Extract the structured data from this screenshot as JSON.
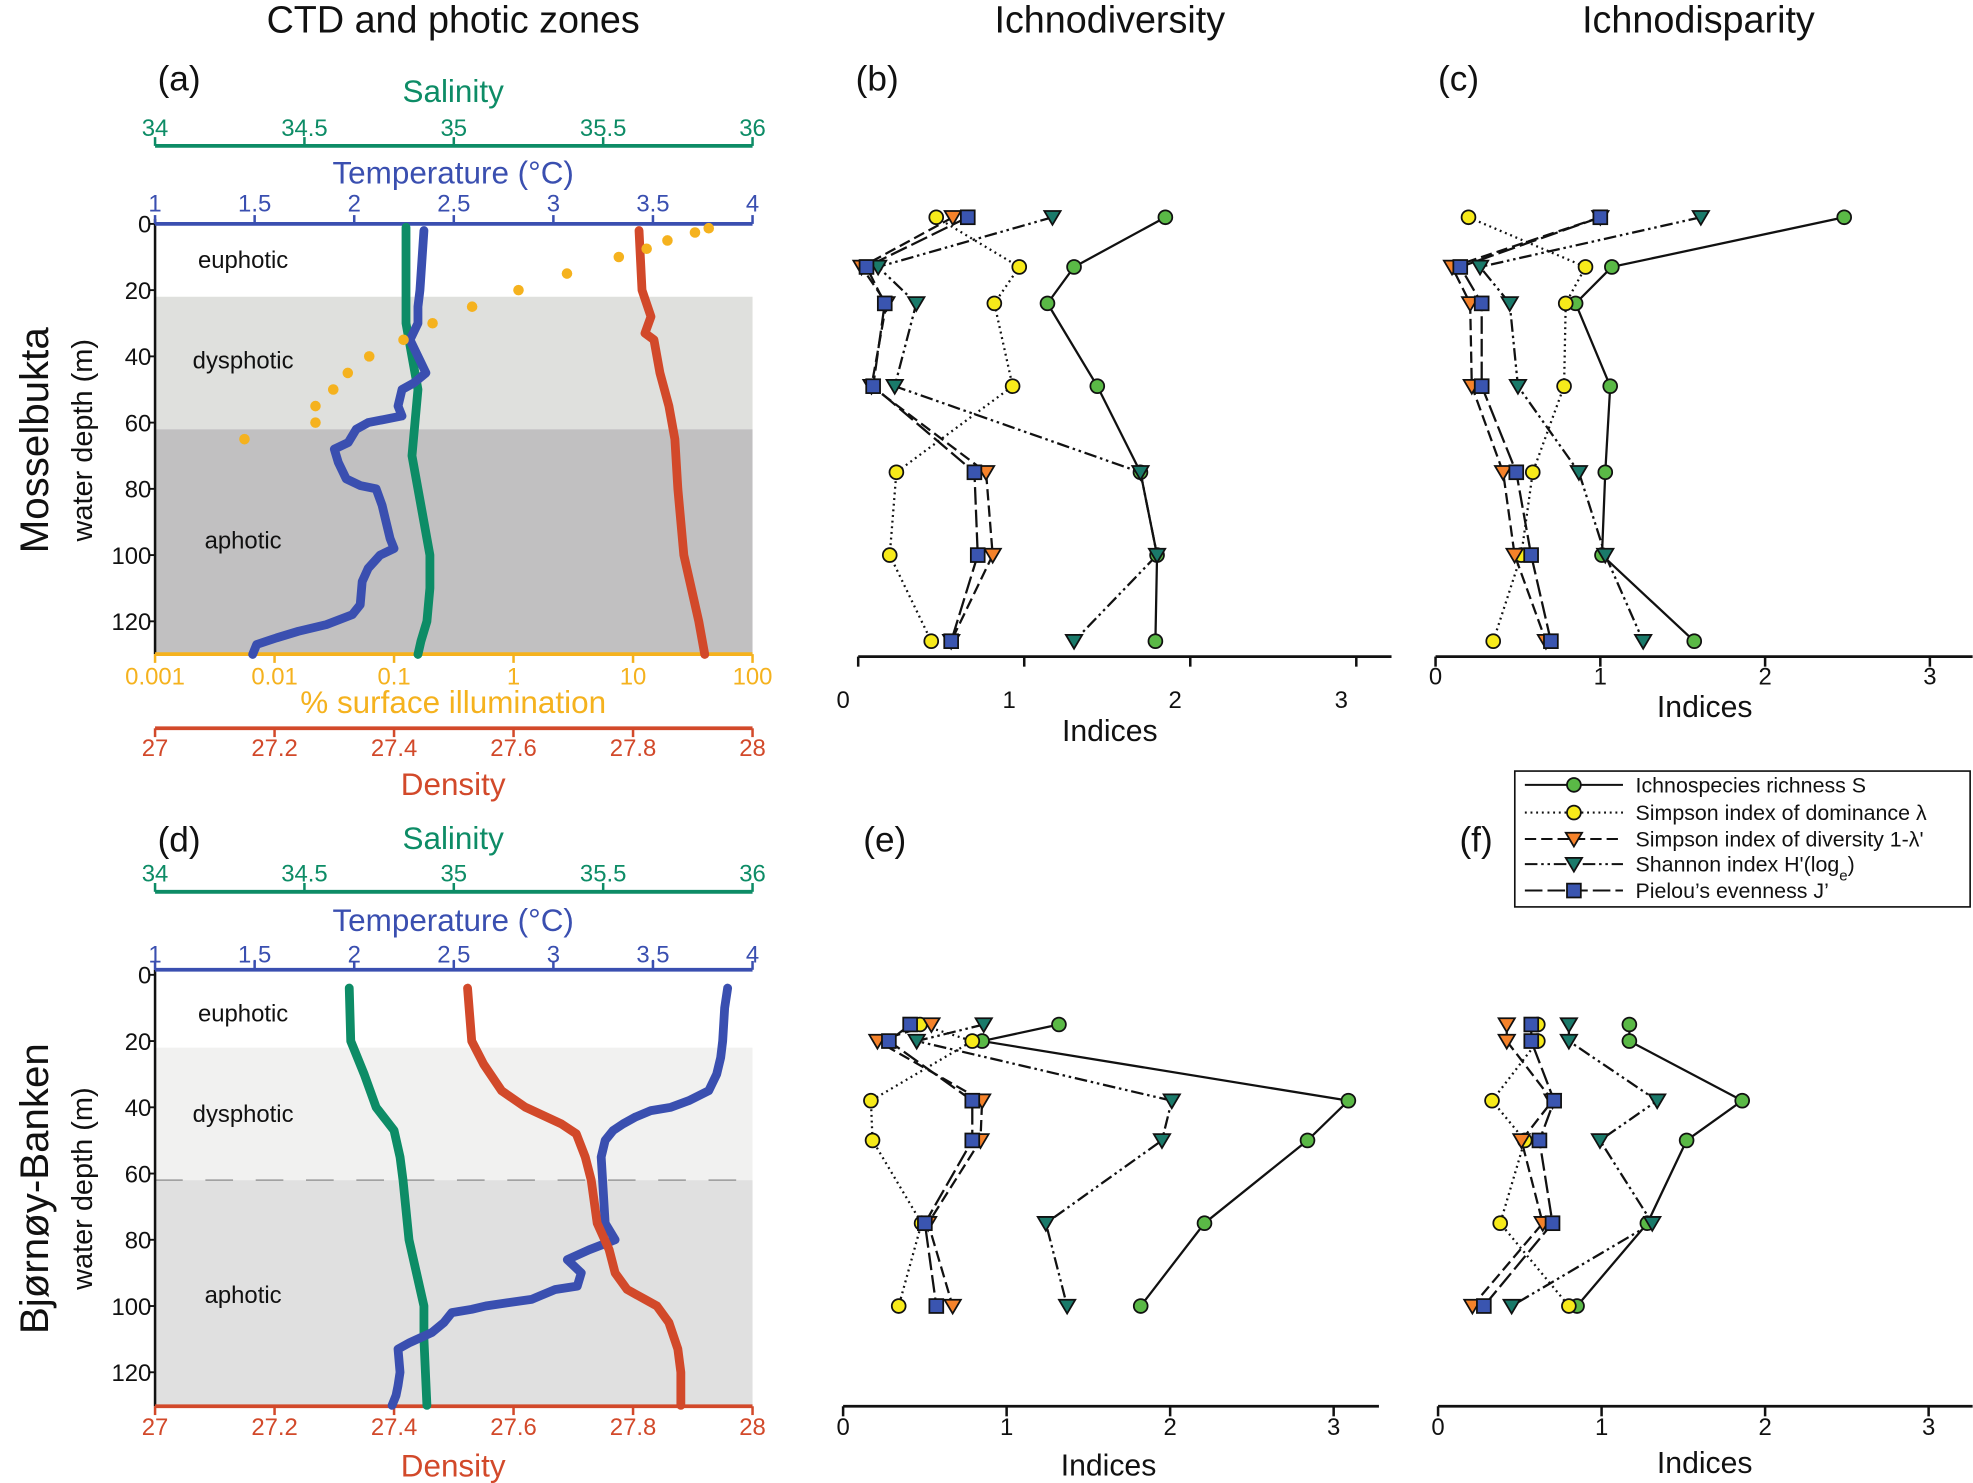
{
  "column_titles": [
    "CTD and photic zones",
    "Ichnodiversity",
    "Ichnodisparity"
  ],
  "row_labels": [
    "Mosselbukta",
    "Bjørnøy-Banken"
  ],
  "colors": {
    "salinity": "#0d8c66",
    "temperature": "#3a4fb0",
    "illumination": "#f5b21e",
    "density": "#d2492a",
    "dysphotic_a": "#dfe0dd",
    "aphotic_a": "#c1c0c1",
    "dysphotic_d": "#f1f1f0",
    "aphotic_d": "#e0e0e0"
  },
  "legend": [
    {
      "key": "S",
      "label": "Ichnospecies richness S",
      "label_sub": "",
      "label_after": "",
      "marker": "circle",
      "color": "#5ab946",
      "style": "solid"
    },
    {
      "key": "lambda",
      "label": "Simpson index of dominance λ",
      "label_sub": "",
      "label_after": "",
      "marker": "circle",
      "color": "#f7ea1a",
      "style": "dotted"
    },
    {
      "key": "simpson_div",
      "label": "Simpson index of diversity 1-λ'",
      "label_sub": "",
      "label_after": "",
      "marker": "triangle",
      "color": "#f5822a",
      "style": "dashed"
    },
    {
      "key": "shannon",
      "label": "Shannon index H'(log",
      "label_sub": "e",
      "label_after": ")",
      "marker": "triangle",
      "color": "#1a7a6a",
      "style": "dashdotdot"
    },
    {
      "key": "pielou",
      "label": "Pielou’s evenness J’",
      "label_sub": "",
      "label_after": "",
      "marker": "square",
      "color": "#3a55b0",
      "style": "longdash"
    }
  ],
  "chart_data": [
    {
      "panel": "a",
      "panel_label": "(a)",
      "type": "line",
      "site": "Mosselbukta",
      "ylabel": "water depth (m)",
      "ylim": [
        0,
        130
      ],
      "yticks": [
        0,
        20,
        40,
        60,
        80,
        100,
        120
      ],
      "zones": [
        {
          "label": "euphotic",
          "from": 0,
          "to": 22
        },
        {
          "label": "dysphotic",
          "from": 22,
          "to": 62
        },
        {
          "label": "aphotic",
          "from": 62,
          "to": 130
        }
      ],
      "axes": [
        {
          "key": "salinity",
          "label": "Salinity",
          "range": [
            34,
            36
          ],
          "scale": "linear",
          "ticks": [
            34,
            34.5,
            35,
            35.5,
            36
          ],
          "tick_labels": [
            "34",
            "34.5",
            "35",
            "35.5",
            "36"
          ]
        },
        {
          "key": "temperature",
          "label": "Temperature (°C)",
          "range": [
            1,
            4
          ],
          "scale": "linear",
          "ticks": [
            1,
            1.5,
            2,
            2.5,
            3,
            3.5,
            4
          ],
          "tick_labels": [
            "1",
            "1.5",
            "2",
            "2.5",
            "3",
            "3.5",
            "4"
          ]
        },
        {
          "key": "illumination",
          "label": "% surface illumination",
          "range": [
            0.001,
            100
          ],
          "scale": "log",
          "ticks": [
            0.001,
            0.01,
            0.1,
            1,
            10,
            100
          ],
          "tick_labels": [
            "0.001",
            "0.01",
            "0.1",
            "1",
            "10",
            "100"
          ]
        },
        {
          "key": "density",
          "label": "Density",
          "range": [
            27,
            28
          ],
          "scale": "linear",
          "ticks": [
            27,
            27.2,
            27.4,
            27.6,
            27.8,
            28
          ],
          "tick_labels": [
            "27",
            "27.2",
            "27.4",
            "27.6",
            "27.8",
            "28"
          ]
        }
      ],
      "series": [
        {
          "name": "Salinity",
          "axis": "salinity",
          "style": "profile",
          "depth": [
            1,
            30,
            40,
            50,
            60,
            70,
            80,
            90,
            100,
            110,
            120,
            126,
            130
          ],
          "values": [
            34.84,
            34.84,
            34.86,
            34.88,
            34.87,
            34.86,
            34.88,
            34.9,
            34.92,
            34.92,
            34.91,
            34.89,
            34.88
          ]
        },
        {
          "name": "Temperature",
          "axis": "temperature",
          "style": "profile",
          "depth": [
            2,
            20,
            25,
            30,
            35,
            45,
            48,
            50,
            55,
            58,
            60,
            62,
            66,
            68,
            72,
            77,
            79,
            80,
            85,
            90,
            95,
            98,
            100,
            104,
            108,
            115,
            118,
            121,
            123,
            125,
            127,
            130
          ],
          "values": [
            2.35,
            2.33,
            2.32,
            2.32,
            2.28,
            2.36,
            2.3,
            2.24,
            2.22,
            2.24,
            2.07,
            2.01,
            1.97,
            1.9,
            1.92,
            1.96,
            2.03,
            2.11,
            2.14,
            2.16,
            2.18,
            2.2,
            2.13,
            2.07,
            2.04,
            2.03,
            1.99,
            1.86,
            1.72,
            1.61,
            1.51,
            1.49
          ]
        },
        {
          "name": "Density",
          "axis": "density",
          "style": "profile",
          "depth": [
            2,
            20,
            28,
            33,
            35,
            45,
            55,
            65,
            80,
            100,
            120,
            130
          ],
          "values": [
            27.81,
            27.815,
            27.83,
            27.82,
            27.835,
            27.845,
            27.86,
            27.87,
            27.875,
            27.885,
            27.91,
            27.92
          ]
        },
        {
          "name": "% surface illumination",
          "axis": "illumination",
          "style": "dots",
          "depth": [
            1.3,
            2.6,
            5,
            7.5,
            10,
            15,
            20,
            25,
            30,
            35,
            40,
            45,
            50,
            55,
            60,
            65
          ],
          "values": [
            43,
            33,
            19.4,
            13,
            7.6,
            2.8,
            1.1,
            0.45,
            0.21,
            0.12,
            0.062,
            0.041,
            0.031,
            0.022,
            0.022,
            0.0056
          ]
        }
      ]
    },
    {
      "panel": "b",
      "panel_label": "(b)",
      "type": "line",
      "site": "Mosselbukta",
      "title": "Ichnodiversity",
      "xlabel": "Indices",
      "xlim": [
        0,
        3.2
      ],
      "xticks": [
        0,
        1,
        2,
        3
      ],
      "tick_labels": [
        "0",
        "1",
        "2",
        "3"
      ],
      "depth": [
        -2,
        13,
        24,
        49,
        75,
        100,
        126
      ],
      "series": [
        {
          "key": "S",
          "values": [
            1.85,
            1.3,
            1.14,
            1.44,
            1.7,
            1.8,
            1.79
          ]
        },
        {
          "key": "lambda",
          "values": [
            0.47,
            0.97,
            0.82,
            0.93,
            0.23,
            0.19,
            0.44
          ]
        },
        {
          "key": "simpson_div",
          "values": [
            0.57,
            0.02,
            0.17,
            0.08,
            0.77,
            0.81,
            0.56
          ]
        },
        {
          "key": "shannon",
          "values": [
            1.17,
            0.12,
            0.35,
            0.22,
            1.7,
            1.8,
            1.3
          ]
        },
        {
          "key": "pielou",
          "values": [
            0.66,
            0.05,
            0.16,
            0.09,
            0.7,
            0.72,
            0.56
          ]
        }
      ]
    },
    {
      "panel": "c",
      "panel_label": "(c)",
      "type": "line",
      "site": "Mosselbukta",
      "title": "Ichnodisparity",
      "xlabel": "Indices",
      "xlim": [
        0,
        3.2
      ],
      "xticks": [
        0,
        1,
        2,
        3
      ],
      "tick_labels": [
        "0",
        "1",
        "2",
        "3"
      ],
      "depth": [
        -2,
        13,
        24,
        49,
        75,
        100,
        126
      ],
      "series": [
        {
          "key": "S",
          "values": [
            2.48,
            1.07,
            0.85,
            1.06,
            1.03,
            1.01,
            1.57
          ]
        },
        {
          "key": "lambda",
          "values": [
            0.2,
            0.91,
            0.79,
            0.78,
            0.59,
            0.52,
            0.35
          ]
        },
        {
          "key": "simpson_div",
          "values": [
            1.0,
            0.1,
            0.21,
            0.22,
            0.41,
            0.48,
            0.67
          ]
        },
        {
          "key": "shannon",
          "values": [
            1.61,
            0.27,
            0.45,
            0.5,
            0.87,
            1.03,
            1.26
          ]
        },
        {
          "key": "pielou",
          "values": [
            1.0,
            0.15,
            0.28,
            0.28,
            0.49,
            0.58,
            0.7
          ]
        }
      ]
    },
    {
      "panel": "d",
      "panel_label": "(d)",
      "type": "line",
      "site": "Bjørnøy-Banken",
      "ylabel": "water depth (m)",
      "ylim": [
        0,
        130
      ],
      "yticks": [
        0,
        20,
        40,
        60,
        80,
        100,
        120
      ],
      "zones": [
        {
          "label": "euphotic",
          "from": 0,
          "to": 22
        },
        {
          "label": "dysphotic",
          "from": 22,
          "to": 62
        },
        {
          "label": "aphotic",
          "from": 62,
          "to": 130
        }
      ],
      "axes": [
        {
          "key": "salinity",
          "label": "Salinity",
          "range": [
            34,
            36
          ],
          "scale": "linear",
          "ticks": [
            34,
            34.5,
            35,
            35.5,
            36
          ],
          "tick_labels": [
            "34",
            "34.5",
            "35",
            "35.5",
            "36"
          ]
        },
        {
          "key": "temperature",
          "label": "Temperature (°C)",
          "range": [
            1,
            4
          ],
          "scale": "linear",
          "ticks": [
            1,
            1.5,
            2,
            2.5,
            3,
            3.5,
            4
          ],
          "tick_labels": [
            "1",
            "1.5",
            "2",
            "2.5",
            "3",
            "3.5",
            "4"
          ]
        },
        {
          "key": "density",
          "label": "Density",
          "range": [
            27,
            28
          ],
          "scale": "linear",
          "ticks": [
            27,
            27.2,
            27.4,
            27.6,
            27.8,
            28
          ],
          "tick_labels": [
            "27",
            "27.2",
            "27.4",
            "27.6",
            "27.8",
            "28"
          ]
        }
      ],
      "series": [
        {
          "name": "Salinity",
          "axis": "salinity",
          "style": "profile",
          "depth": [
            4,
            20,
            30,
            40,
            47,
            55,
            62,
            80,
            90,
            100,
            110,
            130
          ],
          "values": [
            34.65,
            34.655,
            34.7,
            34.74,
            34.8,
            34.82,
            34.83,
            34.85,
            34.875,
            34.9,
            34.9,
            34.91
          ]
        },
        {
          "name": "Temperature",
          "axis": "temperature",
          "style": "profile",
          "depth": [
            4,
            10,
            20,
            25,
            30,
            35,
            38,
            40,
            41,
            43,
            45,
            47,
            50,
            55,
            65,
            75,
            80,
            83,
            86,
            90,
            94,
            95,
            97,
            98,
            99,
            100,
            101,
            102,
            105,
            108,
            111,
            113,
            120,
            124,
            127,
            130
          ],
          "values": [
            3.875,
            3.86,
            3.85,
            3.84,
            3.82,
            3.78,
            3.68,
            3.59,
            3.49,
            3.41,
            3.35,
            3.3,
            3.26,
            3.24,
            3.25,
            3.26,
            3.31,
            3.18,
            3.07,
            3.14,
            3.12,
            3.01,
            2.93,
            2.89,
            2.77,
            2.66,
            2.59,
            2.49,
            2.45,
            2.39,
            2.28,
            2.22,
            2.23,
            2.22,
            2.21,
            2.19
          ]
        },
        {
          "name": "Density",
          "axis": "density",
          "style": "profile",
          "depth": [
            4,
            20,
            27,
            35,
            40,
            45,
            48,
            55,
            62,
            75,
            83,
            90,
            95,
            98,
            100,
            105,
            113,
            120,
            130
          ],
          "values": [
            27.523,
            27.53,
            27.55,
            27.58,
            27.62,
            27.68,
            27.705,
            27.72,
            27.73,
            27.74,
            27.76,
            27.77,
            27.79,
            27.82,
            27.84,
            27.86,
            27.875,
            27.88,
            27.88
          ]
        }
      ]
    },
    {
      "panel": "e",
      "panel_label": "(e)",
      "type": "line",
      "site": "Bjørnøy-Banken",
      "xlabel": "Indices",
      "xlim": [
        0,
        3.3
      ],
      "xticks": [
        0,
        1,
        2,
        3
      ],
      "tick_labels": [
        "0",
        "1",
        "2",
        "3"
      ],
      "depth": [
        15,
        20,
        38,
        50,
        75,
        100
      ],
      "series": [
        {
          "key": "S",
          "values": [
            1.32,
            0.85,
            3.09,
            2.84,
            2.21,
            1.82
          ]
        },
        {
          "key": "lambda",
          "values": [
            0.47,
            0.79,
            0.17,
            0.18,
            0.48,
            0.34
          ]
        },
        {
          "key": "simpson_div",
          "values": [
            0.54,
            0.21,
            0.85,
            0.84,
            0.52,
            0.67
          ]
        },
        {
          "key": "shannon",
          "values": [
            0.86,
            0.45,
            2.01,
            1.95,
            1.24,
            1.37
          ]
        },
        {
          "key": "pielou",
          "values": [
            0.41,
            0.28,
            0.79,
            0.79,
            0.5,
            0.57
          ]
        }
      ]
    },
    {
      "panel": "f",
      "panel_label": "(f)",
      "type": "line",
      "site": "Bjørnøy-Banken",
      "xlabel": "Indices",
      "xlim": [
        0,
        3.3
      ],
      "xticks": [
        0,
        1,
        2,
        3
      ],
      "tick_labels": [
        "0",
        "1",
        "2",
        "3"
      ],
      "depth": [
        15,
        20,
        38,
        50,
        75,
        100
      ],
      "series": [
        {
          "key": "S",
          "values": [
            1.17,
            1.17,
            1.86,
            1.52,
            1.28,
            0.85
          ]
        },
        {
          "key": "lambda",
          "values": [
            0.61,
            0.61,
            0.33,
            0.53,
            0.38,
            0.8
          ]
        },
        {
          "key": "simpson_div",
          "values": [
            0.42,
            0.42,
            0.7,
            0.51,
            0.64,
            0.21
          ]
        },
        {
          "key": "shannon",
          "values": [
            0.8,
            0.8,
            1.34,
            0.99,
            1.31,
            0.45
          ]
        },
        {
          "key": "pielou",
          "values": [
            0.57,
            0.57,
            0.71,
            0.62,
            0.7,
            0.28
          ]
        }
      ]
    }
  ]
}
